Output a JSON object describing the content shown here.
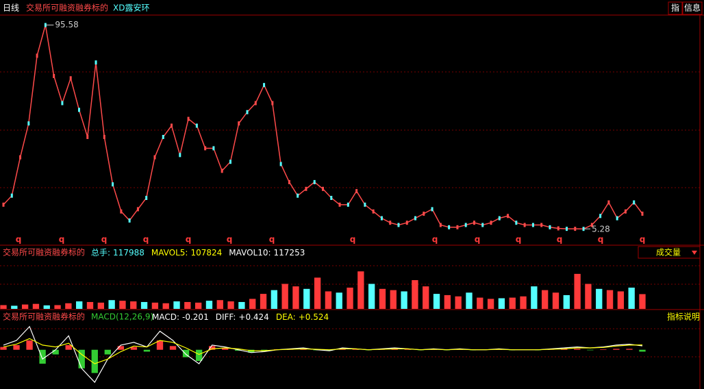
{
  "toolbar": {
    "period": "日线",
    "tag": "交易所可融资融券标的",
    "stock": "XD露安环",
    "buttons": [
      "指",
      "信息"
    ]
  },
  "price_chart": {
    "type": "line",
    "color": "#ff4a4a",
    "ylim": [
      2,
      100
    ],
    "values": [
      16,
      20,
      37,
      52,
      82,
      95.58,
      73,
      61,
      72,
      58,
      46,
      79,
      46,
      25,
      13,
      9,
      14,
      19,
      37,
      46,
      51,
      38,
      54,
      51,
      41,
      41,
      31,
      35,
      52,
      57,
      61,
      69,
      61,
      34,
      26,
      20,
      23,
      26,
      23,
      19,
      16,
      16,
      22,
      16,
      13,
      10,
      8,
      7,
      8,
      10,
      12,
      14,
      7,
      6,
      6,
      7,
      8,
      7,
      8,
      10,
      11,
      8,
      7,
      7,
      7,
      6,
      5.5,
      5.3,
      5.3,
      5.28,
      7,
      11,
      17,
      10,
      13,
      17,
      12
    ],
    "high": 95.58,
    "low": 5.28,
    "markers": [
      "q",
      "q",
      "q",
      "q",
      "q",
      "q",
      "q",
      "q",
      "q",
      "q",
      "q",
      "q",
      "q",
      "q"
    ]
  },
  "volume_chart": {
    "type": "bar",
    "tag": "交易所可融资融券标的",
    "color": "#ff3a3a",
    "ylim": [
      0,
      400000
    ],
    "indicators": [
      {
        "name": "总手:",
        "value": 117988,
        "color": "#5ff"
      },
      {
        "name": "MAVOL5:",
        "value": 107824,
        "color": "#ff0"
      },
      {
        "name": "MAVOL10:",
        "value": 117253,
        "color": "#fff"
      }
    ],
    "selector": "成交量",
    "values": [
      30000,
      25000,
      35000,
      40000,
      28000,
      30000,
      45000,
      60000,
      55000,
      50000,
      70000,
      65000,
      60000,
      55000,
      50000,
      45000,
      60000,
      55000,
      50000,
      65000,
      70000,
      60000,
      55000,
      80000,
      120000,
      150000,
      200000,
      180000,
      160000,
      250000,
      140000,
      130000,
      170000,
      300000,
      200000,
      160000,
      150000,
      140000,
      230000,
      180000,
      120000,
      110000,
      100000,
      130000,
      90000,
      80000,
      85000,
      90000,
      100000,
      180000,
      150000,
      130000,
      110000,
      280000,
      200000,
      160000,
      150000,
      140000,
      170000,
      117988
    ]
  },
  "macd_chart": {
    "type": "macd",
    "tag": "交易所可融资融券标的",
    "title": "MACD(12,26,9)",
    "ylim": [
      -4,
      3
    ],
    "indicators": [
      {
        "name": "MACD:",
        "value": -0.201,
        "color": "#fff"
      },
      {
        "name": "DIFF:",
        "value": 0.424,
        "label": "+0.424",
        "color": "#fff"
      },
      {
        "name": "DEA:",
        "value": 0.524,
        "label": "+0.524",
        "color": "#ff0"
      }
    ],
    "help": "指标说明",
    "diff": [
      0.5,
      1,
      2.5,
      -1,
      0,
      1.5,
      -2,
      -3.5,
      -1,
      0.5,
      0.8,
      0.3,
      2,
      1,
      -0.5,
      -1.5,
      0.5,
      0.3,
      0,
      -0.3,
      -0.2,
      0,
      0.1,
      0.2,
      0,
      -0.1,
      0.2,
      0.1,
      0,
      0.1,
      0.2,
      0.1,
      0,
      0.1,
      0,
      0.1,
      0,
      0,
      0.1,
      0,
      0,
      0,
      0.1,
      0.2,
      0.3,
      0.2,
      0.3,
      0.5,
      0.6,
      0.424
    ],
    "dea": [
      0.3,
      0.6,
      1.2,
      0.5,
      0.3,
      0.7,
      -0.5,
      -1.5,
      -1,
      -0.2,
      0.4,
      0.3,
      1,
      0.8,
      0.2,
      -0.5,
      0.1,
      0.2,
      0.1,
      -0.1,
      -0.1,
      0,
      0.05,
      0.1,
      0.05,
      0,
      0.1,
      0.1,
      0,
      0.05,
      0.1,
      0.1,
      0,
      0.05,
      0,
      0.05,
      0,
      0,
      0.05,
      0,
      0,
      0,
      0.05,
      0.1,
      0.2,
      0.2,
      0.25,
      0.4,
      0.5,
      0.524
    ],
    "macd": [
      0.3,
      0.5,
      1,
      -1.5,
      -0.5,
      0.5,
      -2,
      -2.5,
      -0.5,
      0.4,
      0.3,
      -0.2,
      1,
      0.4,
      -0.8,
      -1.2,
      0.4,
      0.2,
      -0.1,
      -0.3,
      -0.1,
      0.05,
      0.1,
      0.1,
      -0.05,
      -0.1,
      0.1,
      0.05,
      -0.05,
      0.05,
      0.1,
      0.05,
      -0.05,
      0.05,
      -0.05,
      0.05,
      -0.05,
      0,
      0.05,
      -0.05,
      0,
      -0.05,
      0.05,
      0.1,
      0.1,
      -0.05,
      0.05,
      0.1,
      0.1,
      -0.201
    ]
  }
}
